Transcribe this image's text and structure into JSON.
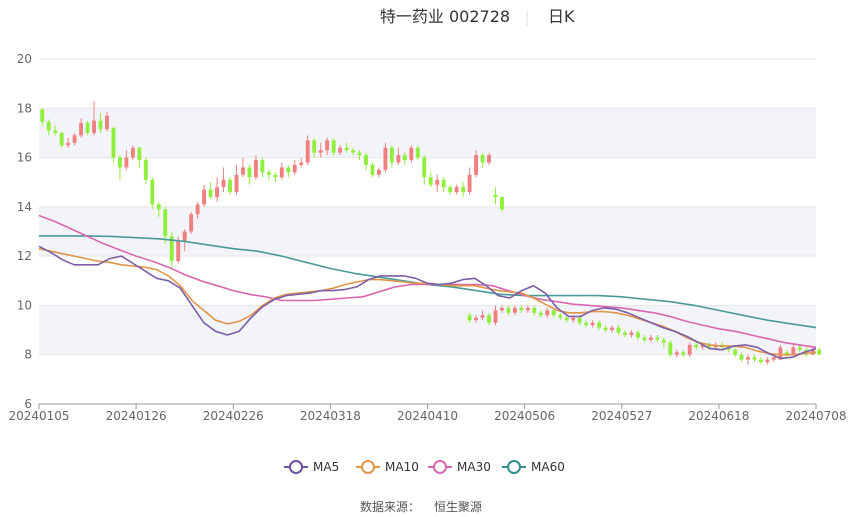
{
  "chart_data": {
    "type": "candlestick",
    "title": "特一药业 002728",
    "period": "日K",
    "source_label": "数据来源：",
    "source_name": "恒生聚源",
    "ylim": [
      6,
      20
    ],
    "yticks": [
      6,
      8,
      10,
      12,
      14,
      16,
      18,
      20
    ],
    "xticks": [
      "20240105",
      "20240126",
      "20240226",
      "20240318",
      "20240410",
      "20240506",
      "20240527",
      "20240618",
      "20240708"
    ],
    "xtick_index": [
      0,
      14,
      28,
      42,
      56,
      70,
      84,
      98,
      112
    ],
    "grid": "horizontal-bands",
    "legend_position": "bottom",
    "colors": {
      "up": "#f08080",
      "down": "#90ee3c",
      "ma5": "#7b5ea7",
      "ma10": "#e0964a",
      "ma30": "#d966b0",
      "ma60": "#4a9a9a",
      "band": "#f3f4fa",
      "grid": "#e6e6e6"
    },
    "legend": [
      {
        "name": "MA5",
        "color": "#6a4fa0"
      },
      {
        "name": "MA10",
        "color": "#e0964a"
      },
      {
        "name": "MA30",
        "color": "#d966b0"
      },
      {
        "name": "MA60",
        "color": "#2f8f8f"
      }
    ],
    "candles": [
      [
        17.95,
        17.45,
        18.0,
        17.3
      ],
      [
        17.45,
        17.1,
        17.55,
        16.9
      ],
      [
        17.1,
        17.0,
        17.3,
        16.9
      ],
      [
        17.0,
        16.5,
        17.05,
        16.4
      ],
      [
        16.5,
        16.6,
        16.8,
        16.4
      ],
      [
        16.6,
        16.9,
        17.0,
        16.5
      ],
      [
        16.9,
        17.4,
        17.6,
        16.8
      ],
      [
        17.4,
        17.0,
        17.5,
        16.9
      ],
      [
        17.0,
        17.5,
        18.3,
        16.9
      ],
      [
        17.5,
        17.15,
        17.8,
        17.0
      ],
      [
        17.15,
        17.7,
        17.85,
        17.05
      ],
      [
        17.2,
        16.0,
        17.25,
        15.8
      ],
      [
        16.0,
        15.6,
        16.1,
        15.1
      ],
      [
        15.6,
        16.0,
        16.3,
        15.5
      ],
      [
        16.0,
        16.4,
        16.5,
        15.9
      ],
      [
        16.4,
        15.9,
        16.45,
        15.6
      ],
      [
        15.9,
        15.1,
        16.0,
        14.9
      ],
      [
        15.1,
        14.1,
        15.2,
        13.9
      ],
      [
        14.1,
        13.9,
        14.2,
        13.6
      ],
      [
        13.9,
        12.8,
        14.0,
        12.5
      ],
      [
        12.8,
        11.8,
        13.0,
        11.5
      ],
      [
        11.8,
        12.6,
        12.8,
        11.7
      ],
      [
        12.6,
        13.0,
        13.1,
        12.2
      ],
      [
        13.0,
        13.7,
        13.8,
        12.9
      ],
      [
        13.7,
        14.1,
        14.2,
        13.5
      ],
      [
        14.1,
        14.7,
        14.9,
        14.0
      ],
      [
        14.7,
        14.4,
        15.0,
        14.3
      ],
      [
        14.4,
        14.8,
        15.2,
        14.2
      ],
      [
        14.8,
        15.1,
        15.6,
        14.6
      ],
      [
        15.1,
        14.6,
        15.2,
        14.5
      ],
      [
        14.6,
        15.3,
        15.7,
        14.5
      ],
      [
        15.3,
        15.6,
        16.0,
        15.2
      ],
      [
        15.6,
        15.2,
        15.7,
        14.9
      ],
      [
        15.2,
        15.9,
        16.1,
        15.1
      ],
      [
        15.9,
        15.4,
        16.0,
        15.2
      ],
      [
        15.4,
        15.3,
        15.5,
        15.1
      ],
      [
        15.3,
        15.2,
        15.4,
        15.0
      ],
      [
        15.2,
        15.6,
        15.8,
        15.1
      ],
      [
        15.6,
        15.4,
        15.7,
        15.2
      ],
      [
        15.4,
        15.7,
        15.9,
        15.3
      ],
      [
        15.7,
        15.8,
        16.0,
        15.6
      ],
      [
        15.8,
        16.7,
        16.9,
        15.7
      ],
      [
        16.7,
        16.2,
        16.8,
        16.0
      ],
      [
        16.2,
        16.3,
        16.6,
        16.0
      ],
      [
        16.3,
        16.7,
        16.8,
        16.1
      ],
      [
        16.7,
        16.2,
        16.8,
        16.1
      ],
      [
        16.2,
        16.4,
        16.5,
        16.1
      ],
      [
        16.4,
        16.3,
        16.6,
        16.2
      ],
      [
        16.3,
        16.2,
        16.4,
        16.1
      ],
      [
        16.2,
        16.1,
        16.3,
        15.9
      ],
      [
        16.1,
        15.7,
        16.2,
        15.5
      ],
      [
        15.7,
        15.3,
        15.8,
        15.2
      ],
      [
        15.3,
        15.5,
        15.6,
        15.2
      ],
      [
        15.5,
        16.4,
        16.6,
        15.4
      ],
      [
        16.4,
        15.8,
        16.5,
        15.6
      ],
      [
        15.8,
        16.1,
        16.4,
        15.7
      ],
      [
        16.1,
        15.9,
        16.2,
        15.7
      ],
      [
        15.9,
        16.4,
        16.5,
        15.8
      ],
      [
        16.4,
        16.0,
        16.5,
        15.9
      ],
      [
        16.0,
        15.2,
        16.1,
        14.9
      ],
      [
        15.2,
        14.9,
        15.4,
        14.8
      ],
      [
        14.9,
        15.1,
        15.3,
        14.6
      ],
      [
        15.1,
        14.8,
        15.2,
        14.6
      ],
      [
        14.8,
        14.6,
        14.9,
        14.5
      ],
      [
        14.6,
        14.8,
        14.9,
        14.5
      ],
      [
        14.8,
        14.6,
        15.0,
        14.4
      ],
      [
        14.6,
        15.3,
        15.6,
        14.5
      ],
      [
        15.3,
        16.1,
        16.3,
        15.2
      ],
      [
        16.1,
        15.8,
        16.2,
        15.6
      ],
      [
        15.8,
        16.1,
        16.2,
        15.7
      ],
      [
        14.5,
        14.4,
        14.8,
        14.1
      ],
      [
        14.4,
        13.9,
        14.3,
        13.8
      ]
    ],
    "candles2": [
      [
        9.6,
        9.4,
        9.7,
        9.3
      ],
      [
        9.4,
        9.5,
        9.6,
        9.3
      ],
      [
        9.5,
        9.6,
        9.8,
        9.4
      ],
      [
        9.6,
        9.3,
        9.7,
        9.2
      ],
      [
        9.3,
        9.8,
        10.0,
        9.2
      ],
      [
        9.8,
        9.9,
        10.0,
        9.7
      ],
      [
        9.9,
        9.7,
        10.0,
        9.6
      ],
      [
        9.7,
        9.9,
        10.0,
        9.6
      ],
      [
        9.9,
        9.8,
        10.0,
        9.7
      ],
      [
        9.8,
        9.9,
        10.0,
        9.7
      ],
      [
        9.9,
        9.7,
        10.0,
        9.6
      ],
      [
        9.7,
        9.6,
        9.8,
        9.5
      ],
      [
        9.6,
        9.8,
        9.9,
        9.5
      ],
      [
        9.8,
        9.6,
        9.9,
        9.5
      ],
      [
        9.6,
        9.5,
        9.7,
        9.4
      ],
      [
        9.5,
        9.4,
        9.6,
        9.3
      ],
      [
        9.4,
        9.5,
        9.6,
        9.3
      ],
      [
        9.5,
        9.3,
        9.6,
        9.2
      ],
      [
        9.3,
        9.2,
        9.4,
        9.1
      ],
      [
        9.2,
        9.3,
        9.4,
        9.1
      ],
      [
        9.3,
        9.1,
        9.4,
        9.0
      ],
      [
        9.1,
        9.0,
        9.2,
        8.9
      ],
      [
        9.0,
        9.1,
        9.2,
        8.9
      ],
      [
        9.1,
        8.9,
        9.2,
        8.8
      ],
      [
        8.9,
        8.8,
        9.0,
        8.7
      ],
      [
        8.8,
        8.9,
        9.0,
        8.7
      ],
      [
        8.9,
        8.7,
        9.0,
        8.6
      ],
      [
        8.7,
        8.6,
        8.8,
        8.5
      ],
      [
        8.6,
        8.7,
        8.8,
        8.5
      ],
      [
        8.7,
        8.6,
        8.8,
        8.5
      ],
      [
        8.6,
        8.5,
        8.7,
        8.3
      ],
      [
        8.5,
        8.0,
        8.6,
        7.9
      ],
      [
        8.0,
        8.1,
        8.2,
        7.9
      ],
      [
        8.1,
        8.0,
        8.2,
        7.9
      ],
      [
        8.0,
        8.4,
        8.5,
        7.9
      ],
      [
        8.4,
        8.3,
        8.5,
        8.2
      ],
      [
        8.3,
        8.4,
        8.5,
        8.2
      ],
      [
        8.4,
        8.3,
        8.5,
        8.2
      ],
      [
        8.3,
        8.4,
        8.5,
        8.2
      ],
      [
        8.4,
        8.3,
        8.5,
        8.2
      ],
      [
        8.3,
        8.2,
        8.4,
        8.1
      ],
      [
        8.2,
        8.0,
        8.3,
        7.9
      ],
      [
        8.0,
        7.8,
        8.1,
        7.7
      ],
      [
        7.8,
        7.9,
        8.0,
        7.6
      ],
      [
        7.9,
        7.8,
        8.0,
        7.7
      ],
      [
        7.8,
        7.7,
        7.9,
        7.6
      ],
      [
        7.7,
        7.8,
        7.9,
        7.6
      ],
      [
        7.8,
        7.9,
        8.0,
        7.7
      ],
      [
        7.8,
        8.3,
        8.4,
        7.8
      ],
      [
        8.1,
        8.0,
        8.2,
        7.9
      ],
      [
        8.0,
        8.3,
        8.4,
        8.0
      ],
      [
        8.3,
        8.2,
        8.4,
        8.1
      ],
      [
        8.2,
        8.0,
        8.3,
        7.9
      ],
      [
        8.0,
        8.2,
        8.3,
        8.0
      ],
      [
        8.2,
        8.0,
        8.3,
        8.0
      ]
    ],
    "ma5": [
      12.4,
      12.15,
      11.85,
      11.65,
      11.65,
      11.65,
      11.9,
      12.0,
      11.7,
      11.4,
      11.1,
      11.0,
      10.7,
      10.0,
      9.3,
      8.95,
      8.8,
      8.95,
      9.5,
      9.95,
      10.25,
      10.4,
      10.45,
      10.5,
      10.6,
      10.6,
      10.65,
      10.75,
      11.05,
      11.2,
      11.2,
      11.2,
      11.1,
      10.9,
      10.85,
      10.9,
      11.05,
      11.1,
      10.8,
      10.4,
      10.3,
      10.6,
      10.8,
      10.5,
      9.9,
      9.55,
      9.55,
      9.8,
      9.9,
      9.85,
      9.7,
      9.5,
      9.3,
      9.1,
      8.95,
      8.75,
      8.5,
      8.25,
      8.2,
      8.35,
      8.4,
      8.3,
      8.05,
      7.85,
      7.9,
      8.1,
      8.25
    ],
    "ma10": [
      12.3,
      12.2,
      12.1,
      12.0,
      11.9,
      11.8,
      11.75,
      11.65,
      11.6,
      11.55,
      11.45,
      11.2,
      10.8,
      10.2,
      9.8,
      9.4,
      9.25,
      9.35,
      9.6,
      10.0,
      10.3,
      10.45,
      10.5,
      10.55,
      10.6,
      10.7,
      10.85,
      10.95,
      11.05,
      11.05,
      11.0,
      10.95,
      10.9,
      10.9,
      10.85,
      10.8,
      10.8,
      10.8,
      10.7,
      10.6,
      10.55,
      10.5,
      10.3,
      10.05,
      9.8,
      9.7,
      9.7,
      9.75,
      9.75,
      9.7,
      9.6,
      9.45,
      9.3,
      9.15,
      8.95,
      8.7,
      8.5,
      8.4,
      8.35,
      8.35,
      8.3,
      8.15,
      8.05,
      8.0,
      8.0,
      8.05,
      8.1
    ],
    "ma30": [
      13.65,
      13.4,
      13.1,
      12.8,
      12.5,
      12.25,
      12.0,
      11.8,
      11.55,
      11.25,
      11.0,
      10.8,
      10.6,
      10.45,
      10.35,
      10.2,
      10.2,
      10.2,
      10.25,
      10.3,
      10.35,
      10.55,
      10.75,
      10.85,
      10.85,
      10.85,
      10.85,
      10.85,
      10.8,
      10.6,
      10.4,
      10.25,
      10.15,
      10.05,
      10.0,
      9.95,
      9.9,
      9.8,
      9.7,
      9.55,
      9.35,
      9.2,
      9.05,
      8.95,
      8.8,
      8.65,
      8.5,
      8.4,
      8.3
    ],
    "ma60": [
      12.82,
      12.82,
      12.82,
      12.8,
      12.75,
      12.7,
      12.6,
      12.45,
      12.3,
      12.2,
      12.0,
      11.75,
      11.5,
      11.3,
      11.15,
      11.0,
      10.85,
      10.75,
      10.6,
      10.45,
      10.4,
      10.4,
      10.4,
      10.4,
      10.35,
      10.25,
      10.15,
      10.0,
      9.8,
      9.6,
      9.4,
      9.25,
      9.1
    ]
  }
}
